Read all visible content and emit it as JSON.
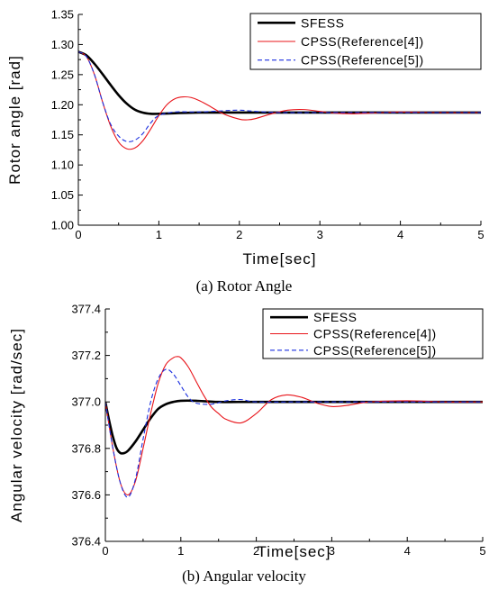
{
  "chart_data": [
    {
      "type": "line",
      "caption": "(a)   Rotor Angle",
      "xlabel": "Time[sec]",
      "ylabel": "Rotor angle [rad]",
      "xlim": [
        0,
        5
      ],
      "ylim": [
        1.0,
        1.35
      ],
      "xticks": [
        "0",
        "1",
        "2",
        "3",
        "4",
        "5"
      ],
      "yticks": [
        "1.00",
        "1.05",
        "1.10",
        "1.15",
        "1.20",
        "1.25",
        "1.30",
        "1.35"
      ],
      "legend_position": "top-right",
      "series": [
        {
          "name": "SFESS",
          "color": "#000000",
          "style": "solid-thick",
          "x": [
            0,
            0.1,
            0.2,
            0.3,
            0.4,
            0.5,
            0.6,
            0.7,
            0.8,
            0.9,
            1.0,
            1.2,
            1.5,
            2.0,
            3.0,
            4.0,
            5.0
          ],
          "y": [
            1.288,
            1.282,
            1.268,
            1.251,
            1.233,
            1.216,
            1.202,
            1.192,
            1.187,
            1.185,
            1.185,
            1.186,
            1.187,
            1.187,
            1.187,
            1.187,
            1.187
          ]
        },
        {
          "name": "CPSS(Reference[4])",
          "color": "#e8141a",
          "style": "solid",
          "x": [
            0,
            0.1,
            0.2,
            0.3,
            0.4,
            0.5,
            0.6,
            0.7,
            0.8,
            0.9,
            1.0,
            1.1,
            1.2,
            1.3,
            1.4,
            1.5,
            1.6,
            1.8,
            2.0,
            2.1,
            2.2,
            2.4,
            2.6,
            2.8,
            3.0,
            3.2,
            3.4,
            3.6,
            3.8,
            4.0,
            4.5,
            5.0
          ],
          "y": [
            1.288,
            1.28,
            1.25,
            1.205,
            1.165,
            1.138,
            1.127,
            1.128,
            1.14,
            1.16,
            1.182,
            1.2,
            1.21,
            1.213,
            1.212,
            1.207,
            1.2,
            1.185,
            1.176,
            1.175,
            1.177,
            1.185,
            1.191,
            1.192,
            1.189,
            1.186,
            1.185,
            1.186,
            1.187,
            1.188,
            1.187,
            1.187
          ]
        },
        {
          "name": "CPSS(Reference[5])",
          "color": "#1a2ee0",
          "style": "dashed",
          "x": [
            0,
            0.1,
            0.2,
            0.3,
            0.4,
            0.5,
            0.6,
            0.7,
            0.8,
            0.9,
            1.0,
            1.2,
            1.5,
            1.8,
            2.0,
            2.2,
            2.5,
            3.0,
            4.0,
            5.0
          ],
          "y": [
            1.288,
            1.28,
            1.25,
            1.205,
            1.168,
            1.148,
            1.139,
            1.141,
            1.152,
            1.17,
            1.182,
            1.188,
            1.188,
            1.19,
            1.191,
            1.189,
            1.187,
            1.187,
            1.187,
            1.187
          ]
        }
      ]
    },
    {
      "type": "line",
      "caption": "(b) Angular velocity",
      "xlabel": "Time[sec]",
      "ylabel": "Angular velocity [rad/sec]",
      "xlim": [
        0,
        5
      ],
      "ylim": [
        376.4,
        377.4
      ],
      "xticks": [
        "0",
        "1",
        "2",
        "3",
        "4",
        "5"
      ],
      "yticks": [
        "376.4",
        "376.6",
        "376.8",
        "377.0",
        "377.2",
        "377.4"
      ],
      "legend_position": "top-right",
      "series": [
        {
          "name": "SFESS",
          "color": "#000000",
          "style": "solid-thick",
          "x": [
            0,
            0.05,
            0.1,
            0.15,
            0.2,
            0.25,
            0.3,
            0.4,
            0.5,
            0.6,
            0.7,
            0.8,
            0.9,
            1.0,
            1.2,
            1.5,
            2.0,
            3.0,
            4.0,
            5.0
          ],
          "y": [
            377.0,
            376.92,
            376.85,
            376.8,
            376.78,
            376.78,
            376.79,
            376.83,
            376.88,
            376.93,
            376.97,
            376.99,
            377.0,
            377.005,
            377.005,
            377.0,
            377.0,
            377.0,
            377.0,
            377.0
          ]
        },
        {
          "name": "CPSS(Reference[4])",
          "color": "#e8141a",
          "style": "solid",
          "x": [
            0,
            0.1,
            0.2,
            0.3,
            0.4,
            0.5,
            0.6,
            0.7,
            0.8,
            0.9,
            0.95,
            1.0,
            1.1,
            1.2,
            1.3,
            1.4,
            1.5,
            1.6,
            1.8,
            2.0,
            2.2,
            2.4,
            2.6,
            2.8,
            3.0,
            3.2,
            3.5,
            4.0,
            4.5,
            5.0
          ],
          "y": [
            377.0,
            376.8,
            376.65,
            376.6,
            376.66,
            376.8,
            376.95,
            377.08,
            377.16,
            377.19,
            377.195,
            377.19,
            377.15,
            377.09,
            377.03,
            376.98,
            376.95,
            376.925,
            376.91,
            376.95,
            377.01,
            377.03,
            377.02,
            376.995,
            376.98,
            376.985,
            377.0,
            377.005,
            377.0,
            377.0
          ]
        },
        {
          "name": "CPSS(Reference[5])",
          "color": "#1a2ee0",
          "style": "dashed",
          "x": [
            0,
            0.1,
            0.2,
            0.3,
            0.4,
            0.5,
            0.6,
            0.7,
            0.8,
            0.9,
            1.0,
            1.1,
            1.2,
            1.4,
            1.6,
            1.8,
            2.0,
            2.5,
            3.0,
            4.0,
            5.0
          ],
          "y": [
            377.0,
            376.8,
            376.65,
            376.59,
            376.67,
            376.84,
            377.0,
            377.1,
            377.14,
            377.12,
            377.07,
            377.02,
            376.995,
            376.99,
            377.005,
            377.01,
            377.0,
            377.0,
            377.0,
            377.0,
            377.0
          ]
        }
      ]
    }
  ]
}
